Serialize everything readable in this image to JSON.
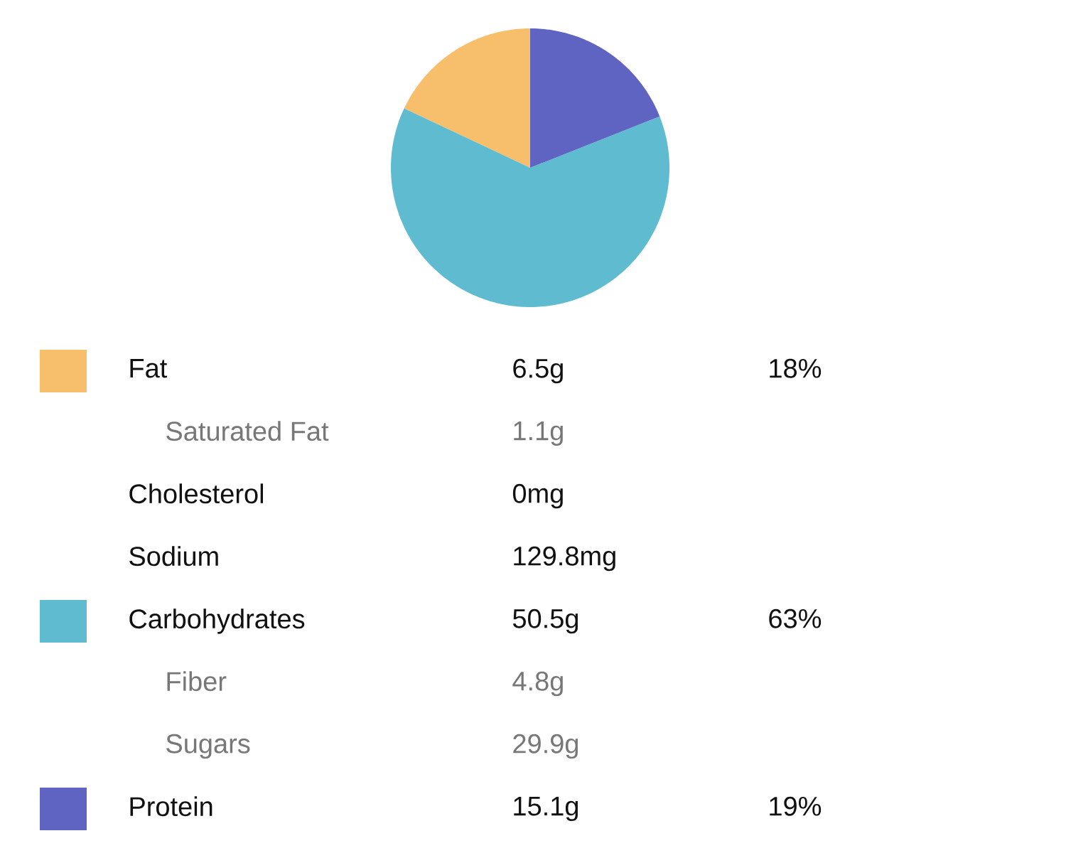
{
  "chart_data": {
    "type": "pie",
    "categories": [
      "Fat",
      "Carbohydrates",
      "Protein"
    ],
    "values": [
      18,
      63,
      19
    ],
    "colors": [
      "#f7be6c",
      "#5fbbcf",
      "#5f63c2"
    ],
    "value_labels": [
      "18%",
      "63%",
      "19%"
    ],
    "legend": "bottom",
    "annotations": [
      "6.5g",
      "Saturated Fat",
      "1.1g",
      "Cholesterol",
      "0mg",
      "Sodium",
      "129.8mg",
      "50.5g",
      "Fiber",
      "4.8g",
      "Sugars",
      "29.9g",
      "15.1g"
    ]
  }
}
